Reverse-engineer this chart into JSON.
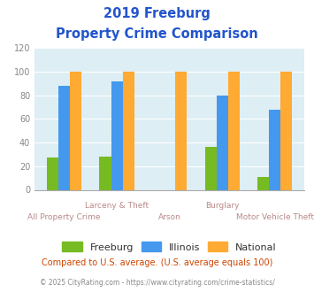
{
  "title_line1": "2019 Freeburg",
  "title_line2": "Property Crime Comparison",
  "categories": [
    "All Property Crime",
    "Larceny & Theft",
    "Arson",
    "Burglary",
    "Motor Vehicle Theft"
  ],
  "x_label_top": [
    "",
    "Larceny & Theft",
    "",
    "Burglary",
    ""
  ],
  "x_label_bot": [
    "All Property Crime",
    "",
    "Arson",
    "",
    "Motor Vehicle Theft"
  ],
  "freeburg": [
    27,
    28,
    0,
    36,
    11
  ],
  "illinois": [
    88,
    92,
    0,
    80,
    68
  ],
  "national": [
    100,
    100,
    100,
    100,
    100
  ],
  "freeburg_color": "#77bb22",
  "illinois_color": "#4499ee",
  "national_color": "#ffaa33",
  "bg_color": "#ddeef4",
  "ylim": [
    0,
    120
  ],
  "yticks": [
    0,
    20,
    40,
    60,
    80,
    100,
    120
  ],
  "subtitle": "Compared to U.S. average. (U.S. average equals 100)",
  "footer": "© 2025 CityRating.com - https://www.cityrating.com/crime-statistics/",
  "legend_labels": [
    "Freeburg",
    "Illinois",
    "National"
  ],
  "title_color": "#2255cc",
  "subtitle_color": "#cc4400",
  "footer_color": "#888888",
  "label_color": "#bb8888"
}
